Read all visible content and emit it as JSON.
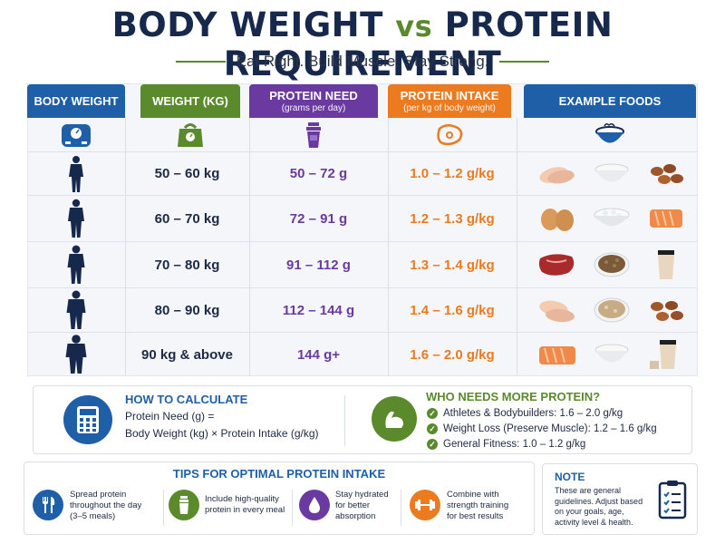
{
  "header": {
    "title_part1": "BODY WEIGHT",
    "title_vs": "vs",
    "title_part2": "PROTEIN REQUIREMENT",
    "subtitle": "Eat Right. Build Muscle. Stay Strong."
  },
  "columns": [
    {
      "title": "BODY WEIGHT",
      "sub": ""
    },
    {
      "title": "WEIGHT (KG)",
      "sub": ""
    },
    {
      "title": "PROTEIN NEED",
      "sub": "(grams per day)"
    },
    {
      "title": "PROTEIN INTAKE",
      "sub": "(per kg of body weight)"
    },
    {
      "title": "EXAMPLE FOODS",
      "sub": ""
    }
  ],
  "rows": [
    {
      "weight": "50 – 60 kg",
      "need": "50 – 72 g",
      "intake": "1.0 – 1.2 g/kg",
      "foods": [
        "chicken-breast",
        "yogurt-bowl",
        "almonds"
      ]
    },
    {
      "weight": "60 – 70 kg",
      "need": "72 – 91 g",
      "intake": "1.2 – 1.3 g/kg",
      "foods": [
        "eggs",
        "cottage-cheese",
        "salmon"
      ]
    },
    {
      "weight": "70 – 80 kg",
      "need": "91 – 112 g",
      "intake": "1.3 – 1.4 g/kg",
      "foods": [
        "steak",
        "lentils",
        "protein-shake"
      ]
    },
    {
      "weight": "80 – 90 kg",
      "need": "112 – 144 g",
      "intake": "1.4 – 1.6 g/kg",
      "foods": [
        "chicken-breast",
        "oats",
        "almonds"
      ]
    },
    {
      "weight": "90 kg & above",
      "need": "144 g+",
      "intake": "1.6 – 2.0 g/kg",
      "foods": [
        "salmon",
        "yogurt-bowl",
        "protein-shake"
      ]
    }
  ],
  "calc": {
    "title": "HOW TO CALCULATE",
    "line1": "Protein Need (g) =",
    "line2": "Body Weight (kg) × Protein Intake (g/kg)"
  },
  "who": {
    "title": "WHO NEEDS MORE PROTEIN?",
    "items": [
      "Athletes & Bodybuilders: 1.6 – 2.0 g/kg",
      "Weight Loss (Preserve Muscle): 1.2 – 1.6 g/kg",
      "General Fitness: 1.0 – 1.2 g/kg"
    ]
  },
  "tips": {
    "title": "TIPS FOR OPTIMAL PROTEIN INTAKE",
    "items": [
      {
        "l1": "Spread protein",
        "l2": "throughout the day",
        "l3": "(3–5 meals)",
        "icon": "utensils-icon"
      },
      {
        "l1": "Include high-quality",
        "l2": "protein in every meal",
        "l3": "",
        "icon": "shaker-icon"
      },
      {
        "l1": "Stay hydrated",
        "l2": "for better",
        "l3": "absorption",
        "icon": "water-drop-icon"
      },
      {
        "l1": "Combine with",
        "l2": "strength training",
        "l3": "for best results",
        "icon": "dumbbell-icon"
      }
    ]
  },
  "note": {
    "title": "NOTE",
    "l1": "These are general",
    "l2": "guidelines. Adjust based",
    "l3": "on your goals, age,",
    "l4": "activity level & health."
  },
  "colors": {
    "navy": "#16294d",
    "blue": "#1f5fa7",
    "green": "#5b8a2d",
    "purple": "#6a3aa0",
    "orange": "#ec7a1f"
  }
}
